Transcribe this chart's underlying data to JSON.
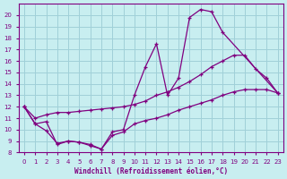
{
  "xlabel": "Windchill (Refroidissement éolien,°C)",
  "bg_color": "#c8eef0",
  "grid_color": "#a0d0d8",
  "line_color": "#800080",
  "xlim": [
    -0.5,
    23.5
  ],
  "ylim": [
    8,
    21
  ],
  "xticks": [
    0,
    1,
    2,
    3,
    4,
    5,
    6,
    7,
    8,
    9,
    10,
    11,
    12,
    13,
    14,
    15,
    16,
    17,
    18,
    19,
    20,
    21,
    22,
    23
  ],
  "yticks": [
    8,
    9,
    10,
    11,
    12,
    13,
    14,
    15,
    16,
    17,
    18,
    19,
    20
  ],
  "line1_x": [
    0,
    1,
    2,
    3,
    4,
    5,
    6,
    7,
    8,
    9,
    10,
    11,
    12,
    13,
    14,
    15,
    16,
    17,
    18,
    23
  ],
  "line1_y": [
    12,
    10.5,
    10.7,
    8.7,
    9.0,
    8.9,
    8.6,
    8.3,
    9.8,
    10.0,
    13.0,
    15.5,
    17.5,
    13.0,
    14.5,
    19.8,
    20.5,
    20.3,
    18.5,
    13.2
  ],
  "line2_x": [
    0,
    1,
    2,
    3,
    4,
    5,
    6,
    7,
    8,
    9,
    10,
    11,
    12,
    13,
    14,
    15,
    16,
    17,
    18,
    19,
    20,
    21,
    22,
    23
  ],
  "line2_y": [
    12,
    11.0,
    11.3,
    11.5,
    11.5,
    11.6,
    11.7,
    11.8,
    11.9,
    12.0,
    12.2,
    12.5,
    13.0,
    13.3,
    13.7,
    14.2,
    14.8,
    15.5,
    16.0,
    16.5,
    16.5,
    15.3,
    14.5,
    13.2
  ],
  "line3_x": [
    0,
    1,
    2,
    3,
    4,
    5,
    6,
    7,
    8,
    9,
    10,
    11,
    12,
    13,
    14,
    15,
    16,
    17,
    18,
    19,
    20,
    21,
    22,
    23
  ],
  "line3_y": [
    12,
    10.5,
    9.9,
    8.8,
    9.0,
    8.9,
    8.7,
    8.3,
    9.5,
    9.8,
    10.5,
    10.8,
    11.0,
    11.3,
    11.7,
    12.0,
    12.3,
    12.6,
    13.0,
    13.3,
    13.5,
    13.5,
    13.5,
    13.2
  ]
}
